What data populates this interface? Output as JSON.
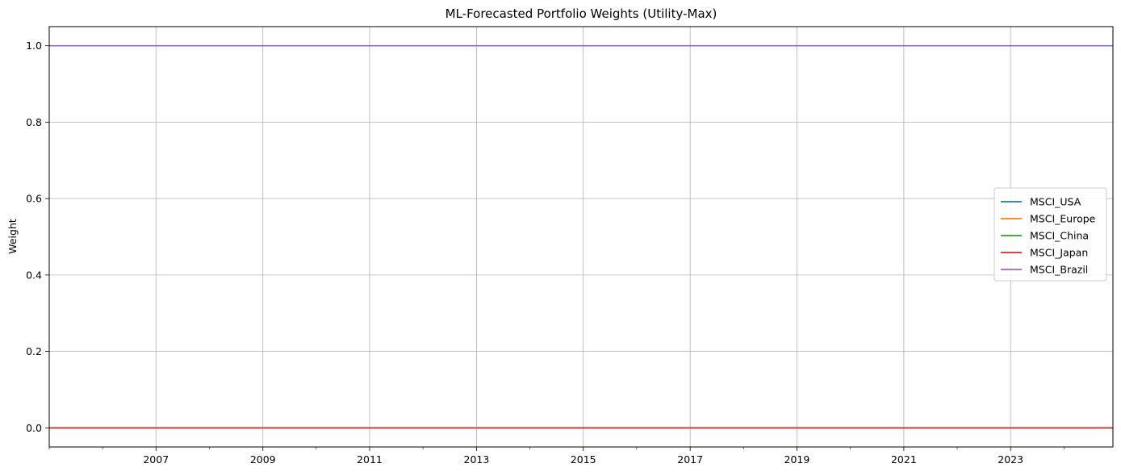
{
  "chart_data": {
    "type": "line",
    "title": "ML-Forecasted Portfolio Weights (Utility-Max)",
    "xlabel": "",
    "ylabel": "Weight",
    "x_range": [
      "2005-01-01",
      "2024-12-01"
    ],
    "ylim": [
      -0.05,
      1.05
    ],
    "x_ticks": [
      "2007",
      "2009",
      "2011",
      "2013",
      "2015",
      "2017",
      "2019",
      "2021",
      "2023"
    ],
    "y_ticks": [
      "0.0",
      "0.2",
      "0.4",
      "0.6",
      "0.8",
      "1.0"
    ],
    "grid": true,
    "legend_position": "center-right",
    "series": [
      {
        "name": "MSCI_USA",
        "color": "#1f77b4",
        "x": [
          "2005-01-01",
          "2024-12-01"
        ],
        "values": [
          0,
          0
        ]
      },
      {
        "name": "MSCI_Europe",
        "color": "#ff7f0e",
        "x": [
          "2005-01-01",
          "2024-12-01"
        ],
        "values": [
          0,
          0
        ]
      },
      {
        "name": "MSCI_China",
        "color": "#2ca02c",
        "x": [
          "2005-01-01",
          "2024-12-01"
        ],
        "values": [
          0,
          0
        ]
      },
      {
        "name": "MSCI_Japan",
        "color": "#d62728",
        "x": [
          "2005-01-01",
          "2024-12-01"
        ],
        "values": [
          0,
          0
        ]
      },
      {
        "name": "MSCI_Brazil",
        "color": "#9467bd",
        "x": [
          "2005-01-01",
          "2024-12-01"
        ],
        "values": [
          1,
          1
        ]
      }
    ]
  }
}
